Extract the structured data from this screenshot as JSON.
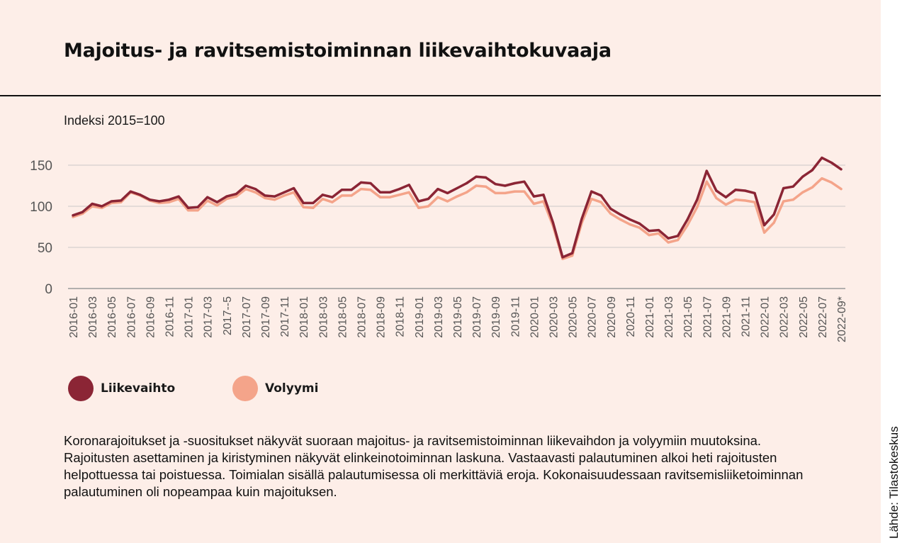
{
  "title": "Majoitus- ja ravitsemistoiminnan liikevaihtokuvaaja",
  "description": "Koronarajoitukset ja -suositukset näkyvät suoraan majoitus- ja ravitsemistoiminnan liikevaihdon ja volyymiin muutoksina. Rajoitusten asettaminen ja kiristyminen näkyvät elinkeinotoiminnan laskuna. Vastaavasti palautuminen alkoi heti rajoitusten helpottuessa tai poistuessa. Toimialan sisällä palautumisessa oli merkittäviä eroja. Kokonaisuudessaan ravitsemisliiketoiminnan palautuminen oli nopeampaa kuin majoituksen.",
  "source": "Lähde: Tilastokeskus",
  "colors": {
    "background": "#fdeee8",
    "liikevaihto": "#8b2535",
    "volyymi": "#f4a48a"
  },
  "chart_data": {
    "type": "line",
    "ylabel": "Indeksi 2015=100",
    "ylim": [
      0,
      150
    ],
    "yticks": [
      0,
      50,
      100,
      150
    ],
    "grid": true,
    "legend_position": "bottom-left",
    "xticklabels": [
      "2016-01",
      "2016-03",
      "2016-05",
      "2016-07",
      "2016-09",
      "2016-11",
      "2017-01",
      "2017-03",
      "2017--5",
      "2017-07",
      "2017-09",
      "2017-11",
      "2018-01",
      "2018-03",
      "2018-05",
      "2018-07",
      "2018-09",
      "2018-11",
      "2019-01",
      "2019-03",
      "2019-05",
      "2019-07",
      "2019-09",
      "2019-11",
      "2020-01",
      "2020-03",
      "2020-05",
      "2020-07",
      "2020-09",
      "2020-11",
      "2021-01",
      "2021-03",
      "2021-05",
      "2021-07",
      "2021-09",
      "2021-11",
      "2022-01",
      "2022-03",
      "2022-05",
      "2022-07",
      "2022-09*"
    ],
    "x": [
      "2016-01",
      "2016-02",
      "2016-03",
      "2016-04",
      "2016-05",
      "2016-06",
      "2016-07",
      "2016-08",
      "2016-09",
      "2016-10",
      "2016-11",
      "2016-12",
      "2017-01",
      "2017-02",
      "2017-03",
      "2017-04",
      "2017-05",
      "2017-06",
      "2017-07",
      "2017-08",
      "2017-09",
      "2017-10",
      "2017-11",
      "2017-12",
      "2018-01",
      "2018-02",
      "2018-03",
      "2018-04",
      "2018-05",
      "2018-06",
      "2018-07",
      "2018-08",
      "2018-09",
      "2018-10",
      "2018-11",
      "2018-12",
      "2019-01",
      "2019-02",
      "2019-03",
      "2019-04",
      "2019-05",
      "2019-06",
      "2019-07",
      "2019-08",
      "2019-09",
      "2019-10",
      "2019-11",
      "2019-12",
      "2020-01",
      "2020-02",
      "2020-03",
      "2020-04",
      "2020-05",
      "2020-06",
      "2020-07",
      "2020-08",
      "2020-09",
      "2020-10",
      "2020-11",
      "2020-12",
      "2021-01",
      "2021-02",
      "2021-03",
      "2021-04",
      "2021-05",
      "2021-06",
      "2021-07",
      "2021-08",
      "2021-09",
      "2021-10",
      "2021-11",
      "2021-12",
      "2022-01",
      "2022-02",
      "2022-03",
      "2022-04",
      "2022-05",
      "2022-06",
      "2022-07",
      "2022-08",
      "2022-09"
    ],
    "series": [
      {
        "name": "Liikevaihto",
        "values": [
          89,
          93,
          103,
          100,
          106,
          107,
          118,
          114,
          108,
          106,
          108,
          112,
          98,
          99,
          111,
          105,
          112,
          115,
          125,
          121,
          113,
          112,
          117,
          122,
          104,
          104,
          114,
          111,
          120,
          120,
          129,
          128,
          117,
          117,
          121,
          126,
          106,
          109,
          121,
          116,
          122,
          128,
          136,
          135,
          127,
          125,
          128,
          130,
          112,
          114,
          80,
          38,
          43,
          85,
          118,
          113,
          97,
          90,
          84,
          79,
          70,
          71,
          61,
          64,
          84,
          108,
          143,
          119,
          111,
          120,
          119,
          116,
          77,
          90,
          122,
          124,
          136,
          144,
          159,
          153,
          145
        ]
      },
      {
        "name": "Volyymi",
        "values": [
          87,
          91,
          100,
          98,
          104,
          105,
          117,
          113,
          107,
          104,
          105,
          109,
          95,
          95,
          107,
          101,
          109,
          112,
          121,
          117,
          110,
          108,
          113,
          117,
          99,
          98,
          109,
          105,
          113,
          113,
          121,
          120,
          111,
          111,
          114,
          117,
          98,
          100,
          111,
          106,
          112,
          117,
          125,
          124,
          116,
          116,
          118,
          118,
          103,
          106,
          76,
          36,
          40,
          80,
          109,
          105,
          91,
          84,
          78,
          74,
          65,
          67,
          56,
          59,
          77,
          99,
          130,
          110,
          102,
          108,
          107,
          105,
          68,
          80,
          106,
          108,
          117,
          123,
          134,
          129,
          121
        ]
      }
    ]
  }
}
